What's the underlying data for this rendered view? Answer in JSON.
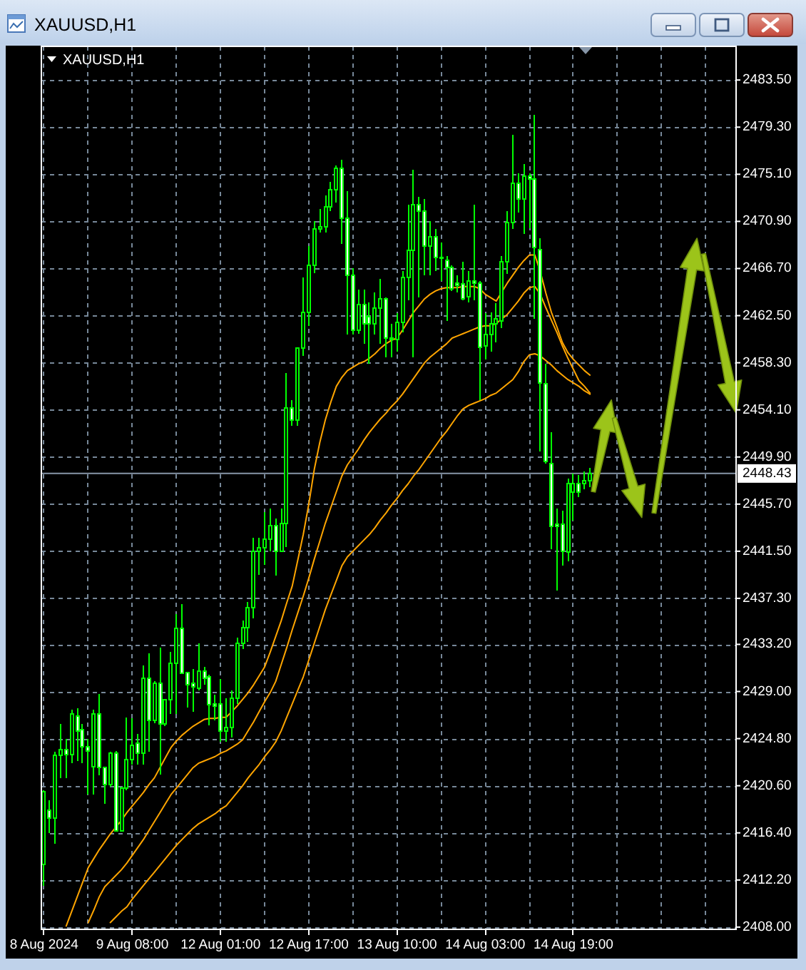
{
  "chart_data": {
    "type": "candlestick",
    "title": "XAUUSD,H1",
    "categories": [
      "8 Aug 2024",
      null,
      null,
      null,
      null,
      null,
      null,
      null,
      null,
      null,
      null,
      null,
      null,
      null,
      null,
      null,
      "9 Aug 08:00",
      null,
      null,
      null,
      null,
      null,
      null,
      null,
      null,
      null,
      null,
      null,
      null,
      null,
      null,
      null,
      "12 Aug 01:00",
      null,
      null,
      null,
      null,
      null,
      null,
      null,
      null,
      null,
      null,
      null,
      null,
      null,
      null,
      null,
      "12 Aug 17:00",
      null,
      null,
      null,
      null,
      null,
      null,
      null,
      null,
      null,
      null,
      null,
      null,
      null,
      null,
      null,
      "13 Aug 10:00",
      null,
      null,
      null,
      null,
      null,
      null,
      null,
      null,
      null,
      null,
      null,
      null,
      null,
      null,
      null,
      "14 Aug 03:00",
      null,
      null,
      null,
      null,
      null,
      null,
      null,
      null,
      null,
      null,
      null,
      null,
      null,
      null,
      null,
      "14 Aug 19:00",
      null,
      null,
      null,
      null,
      null,
      null,
      null,
      null,
      null,
      null,
      null,
      null,
      null,
      null,
      null,
      null,
      null,
      null,
      null,
      null,
      null,
      null,
      null,
      null,
      null,
      null,
      null,
      null,
      null
    ],
    "ohlc": [
      [
        2413.6,
        2420.2,
        2411.7,
        2420.1
      ],
      [
        2418.4,
        2419.3,
        2416.4,
        2417.7
      ],
      [
        2417.7,
        2423.6,
        2415.4,
        2423.3
      ],
      [
        2423.3,
        2426.1,
        2421.3,
        2423.8
      ],
      [
        2423.8,
        2424.8,
        2421.3,
        2423.4
      ],
      [
        2423.4,
        2427.4,
        2422.6,
        2427.0
      ],
      [
        2426.8,
        2427.5,
        2422.8,
        2425.5
      ],
      [
        2425.6,
        2426.1,
        2422.6,
        2424.1
      ],
      [
        2424.1,
        2424.8,
        2419.8,
        2423.7
      ],
      [
        2422.3,
        2427.4,
        2419.8,
        2427.0
      ],
      [
        2427.0,
        2428.8,
        2421.5,
        2422.2
      ],
      [
        2422.2,
        2422.3,
        2419.0,
        2420.7
      ],
      [
        2420.7,
        2423.6,
        2420.5,
        2423.5
      ],
      [
        2423.5,
        2423.7,
        2416.5,
        2416.6
      ],
      [
        2416.6,
        2420.5,
        2416.5,
        2420.4
      ],
      [
        2420.4,
        2426.7,
        2420.2,
        2422.9
      ],
      [
        2422.9,
        2426.6,
        2422.5,
        2424.2
      ],
      [
        2424.4,
        2425.2,
        2422.5,
        2423.5
      ],
      [
        2423.5,
        2431.3,
        2422.5,
        2430.2
      ],
      [
        2430.2,
        2432.4,
        2423.6,
        2426.4
      ],
      [
        2426.4,
        2429.9,
        2426.2,
        2429.7
      ],
      [
        2429.7,
        2432.9,
        2421.6,
        2426.1
      ],
      [
        2426.1,
        2428.3,
        2425.9,
        2428.3
      ],
      [
        2428.3,
        2432.5,
        2427.0,
        2431.5
      ],
      [
        2431.5,
        2435.9,
        2427.0,
        2434.6
      ],
      [
        2434.6,
        2436.8,
        2430.6,
        2430.6
      ],
      [
        2430.7,
        2430.7,
        2427.6,
        2429.6
      ],
      [
        2429.7,
        2431.0,
        2427.2,
        2429.4
      ],
      [
        2429.3,
        2433.3,
        2429.1,
        2430.8
      ],
      [
        2430.8,
        2431.2,
        2429.6,
        2430.2
      ],
      [
        2430.3,
        2430.5,
        2426.0,
        2427.8
      ],
      [
        2427.9,
        2428.7,
        2426.4,
        2427.7
      ],
      [
        2427.9,
        2430.1,
        2424.5,
        2425.5
      ],
      [
        2425.5,
        2428.4,
        2424.5,
        2425.8
      ],
      [
        2425.8,
        2429.1,
        2424.9,
        2428.4
      ],
      [
        2428.4,
        2433.8,
        2427.9,
        2433.3
      ],
      [
        2433.3,
        2435.3,
        2432.8,
        2434.7
      ],
      [
        2434.7,
        2437.0,
        2433.4,
        2436.5
      ],
      [
        2436.5,
        2442.7,
        2435.5,
        2441.5
      ],
      [
        2441.5,
        2442.7,
        2439.4,
        2441.8
      ],
      [
        2441.8,
        2445.0,
        2440.3,
        2442.6
      ],
      [
        2442.6,
        2445.3,
        2441.5,
        2443.8
      ],
      [
        2443.8,
        2444.4,
        2439.3,
        2441.5
      ],
      [
        2441.5,
        2445.3,
        2441.4,
        2444.0
      ],
      [
        2444.0,
        2457.4,
        2441.9,
        2454.3
      ],
      [
        2454.3,
        2455.0,
        2452.7,
        2453.2
      ],
      [
        2453.2,
        2459.7,
        2452.7,
        2459.6
      ],
      [
        2459.6,
        2465.9,
        2458.9,
        2462.8
      ],
      [
        2462.8,
        2468.7,
        2461.6,
        2467.0
      ],
      [
        2467.0,
        2470.9,
        2466.3,
        2470.2
      ],
      [
        2470.2,
        2472.0,
        2469.9,
        2470.4
      ],
      [
        2470.4,
        2473.2,
        2469.9,
        2472.2
      ],
      [
        2472.2,
        2474.4,
        2471.8,
        2473.7
      ],
      [
        2473.7,
        2475.9,
        2472.6,
        2475.6
      ],
      [
        2475.6,
        2476.4,
        2468.9,
        2471.2
      ],
      [
        2471.2,
        2473.6,
        2460.8,
        2466.1
      ],
      [
        2466.1,
        2466.7,
        2460.8,
        2461.2
      ],
      [
        2461.2,
        2464.8,
        2460.9,
        2463.5
      ],
      [
        2463.5,
        2464.8,
        2460.0,
        2461.8
      ],
      [
        2462.4,
        2463.7,
        2458.2,
        2461.8
      ],
      [
        2461.8,
        2464.6,
        2460.8,
        2463.2
      ],
      [
        2463.2,
        2465.8,
        2460.0,
        2464.0
      ],
      [
        2464.0,
        2464.1,
        2458.8,
        2460.5
      ],
      [
        2460.5,
        2461.8,
        2458.8,
        2460.4
      ],
      [
        2460.4,
        2462.7,
        2459.3,
        2461.9
      ],
      [
        2461.9,
        2466.5,
        2461.0,
        2465.9
      ],
      [
        2465.9,
        2472.4,
        2463.9,
        2468.3
      ],
      [
        2468.3,
        2475.5,
        2458.8,
        2472.4
      ],
      [
        2472.4,
        2473.1,
        2464.1,
        2471.8
      ],
      [
        2471.8,
        2472.9,
        2466.1,
        2468.7
      ],
      [
        2468.7,
        2470.9,
        2466.1,
        2469.5
      ],
      [
        2469.5,
        2470.2,
        2466.5,
        2467.7
      ],
      [
        2467.7,
        2469.0,
        2465.6,
        2467.6
      ],
      [
        2467.4,
        2467.8,
        2462.0,
        2466.8
      ],
      [
        2466.8,
        2467.0,
        2464.7,
        2464.9
      ],
      [
        2465.4,
        2466.1,
        2464.6,
        2465.2
      ],
      [
        2465.3,
        2467.3,
        2463.9,
        2464.0
      ],
      [
        2464.2,
        2466.5,
        2463.7,
        2465.6
      ],
      [
        2465.6,
        2472.4,
        2463.9,
        2465.4
      ],
      [
        2465.4,
        2465.6,
        2455.0,
        2459.7
      ],
      [
        2459.8,
        2462.7,
        2458.6,
        2460.8
      ],
      [
        2460.8,
        2462.8,
        2459.3,
        2461.8
      ],
      [
        2461.8,
        2463.6,
        2460.1,
        2462.2
      ],
      [
        2462.0,
        2467.8,
        2461.4,
        2467.3
      ],
      [
        2467.3,
        2471.8,
        2466.2,
        2470.8
      ],
      [
        2470.8,
        2478.6,
        2470.2,
        2474.3
      ],
      [
        2474.3,
        2475.2,
        2471.7,
        2472.9
      ],
      [
        2472.9,
        2476.0,
        2469.8,
        2474.9
      ],
      [
        2474.9,
        2475.2,
        2470.3,
        2474.7
      ],
      [
        2474.7,
        2480.4,
        2462.2,
        2468.6
      ],
      [
        2468.4,
        2469.4,
        2450.4,
        2456.5
      ],
      [
        2456.4,
        2458.2,
        2449.3,
        2449.5
      ],
      [
        2449.3,
        2452.1,
        2441.7,
        2443.7
      ],
      [
        2443.9,
        2445.3,
        2438.0,
        2443.7
      ],
      [
        2443.9,
        2445.1,
        2440.2,
        2441.5
      ],
      [
        2441.4,
        2448.0,
        2440.6,
        2447.5
      ],
      [
        2446.8,
        2448.4,
        2444.2,
        2447.5
      ],
      [
        2447.5,
        2448.3,
        2446.3,
        2446.8
      ],
      [
        2447.5,
        2448.6,
        2447.0,
        2447.8
      ],
      [
        2447.8,
        2448.9,
        2447.2,
        2448.43
      ],
      null,
      null,
      null,
      null,
      null,
      null,
      null,
      null,
      null,
      null,
      null,
      null,
      null,
      null,
      null,
      null,
      null,
      null,
      null,
      null,
      null,
      null,
      null,
      null,
      null,
      null
    ],
    "color": "#00ff00",
    "colors": [
      "#000000",
      "#ffffff",
      "#000000",
      "#000000",
      "#ffffff",
      "#000000",
      "#ffffff",
      "#ffffff",
      "#ffffff",
      "#000000",
      "#ffffff",
      "#ffffff",
      "#000000",
      "#ffffff",
      "#000000",
      "#000000",
      "#000000",
      "#ffffff",
      "#000000",
      "#ffffff",
      "#000000",
      "#ffffff",
      "#000000",
      "#000000",
      "#000000",
      "#ffffff",
      "#ffffff",
      "#ffffff",
      "#000000",
      "#ffffff",
      "#ffffff",
      "#ffffff",
      "#ffffff",
      "#000000",
      "#000000",
      "#000000",
      "#000000",
      "#000000",
      "#000000",
      "#000000",
      "#000000",
      "#000000",
      "#ffffff",
      "#000000",
      "#000000",
      "#ffffff",
      "#000000",
      "#000000",
      "#000000",
      "#000000",
      "#000000",
      "#000000",
      "#000000",
      "#000000",
      "#ffffff",
      "#ffffff",
      "#ffffff",
      "#000000",
      "#ffffff",
      "#ffffff",
      "#000000",
      "#000000",
      "#ffffff",
      "#ffffff",
      "#000000",
      "#000000",
      "#000000",
      "#000000",
      "#ffffff",
      "#ffffff",
      "#000000",
      "#ffffff",
      "#ffffff",
      "#ffffff",
      "#ffffff",
      "#ffffff",
      "#ffffff",
      "#000000",
      "#ffffff",
      "#ffffff",
      "#000000",
      "#000000",
      "#000000",
      "#000000",
      "#000000",
      "#000000",
      "#ffffff",
      "#000000",
      "#ffffff",
      "#ffffff",
      "#ffffff",
      "#ffffff",
      "#ffffff",
      "#ffffff",
      "#ffffff",
      "#000000",
      "#000000",
      "#ffffff",
      "#000000",
      "#000000",
      null,
      null,
      null,
      null,
      null,
      null,
      null,
      null,
      null,
      null,
      null,
      null,
      null,
      null,
      null,
      null,
      null,
      null,
      null,
      null,
      null,
      null,
      null,
      null,
      null,
      null
    ],
    "series": [
      {
        "type": "line",
        "color": "#ffa500",
        "values": [
          null,
          null,
          null,
          null,
          2408.1,
          2409.4,
          2410.7,
          2412.0,
          2413.3,
          2414.1,
          2414.9,
          2415.6,
          2416.3,
          2416.9,
          2417.5,
          2418.2,
          2418.8,
          2419.4,
          2420.0,
          2420.7,
          2421.3,
          2422.2,
          2423.1,
          2424.0,
          2424.6,
          2425.1,
          2425.5,
          2425.9,
          2426.2,
          2426.5,
          2426.6,
          2426.6,
          2426.7,
          2426.7,
          2427.2,
          2427.7,
          2428.3,
          2428.9,
          2429.6,
          2430.4,
          2431.2,
          2432.5,
          2433.9,
          2435.3,
          2436.9,
          2438.4,
          2440.7,
          2443.0,
          2445.7,
          2448.8,
          2451.2,
          2453.2,
          2454.8,
          2456.2,
          2457.0,
          2457.6,
          2457.9,
          2458.2,
          2458.4,
          2458.7,
          2459.1,
          2459.6,
          2460.0,
          2460.3,
          2460.5,
          2461.2,
          2462.0,
          2462.8,
          2463.4,
          2464.0,
          2464.4,
          2464.7,
          2464.9,
          2465.0,
          2465.0,
          2465.0,
          2465.1,
          2465.1,
          2465.1,
          2464.9,
          2464.4,
          2464.1,
          2463.8,
          2464.6,
          2465.4,
          2466.1,
          2466.8,
          2467.4,
          2467.9,
          2467.9,
          2466.4,
          2464.5,
          2462.8,
          2461.5,
          2460.1,
          2459.2,
          2458.6,
          2458.1,
          2457.6,
          2457.2,
          null,
          null,
          null,
          null,
          null,
          null,
          null,
          null,
          null,
          null,
          null,
          null,
          null,
          null,
          null,
          null,
          null,
          null,
          null,
          null,
          null,
          null,
          null,
          null,
          null,
          null
        ]
      },
      {
        "type": "line",
        "color": "#ffa500",
        "values": [
          null,
          null,
          null,
          null,
          null,
          null,
          null,
          null,
          2408.4,
          2409.5,
          2410.7,
          2411.6,
          2412.1,
          2412.6,
          2413.1,
          2413.7,
          2414.4,
          2415.1,
          2415.8,
          2416.6,
          2417.4,
          2418.2,
          2419.0,
          2419.8,
          2420.4,
          2421.0,
          2421.6,
          2422.2,
          2422.6,
          2422.8,
          2423.0,
          2423.2,
          2423.5,
          2423.7,
          2424.0,
          2424.3,
          2424.7,
          2425.5,
          2426.3,
          2427.2,
          2428.1,
          2428.9,
          2429.9,
          2431.4,
          2432.9,
          2434.5,
          2436.0,
          2437.5,
          2439.1,
          2440.8,
          2442.4,
          2444.0,
          2445.4,
          2446.8,
          2448.2,
          2449.2,
          2449.9,
          2450.6,
          2451.4,
          2452.1,
          2452.7,
          2453.3,
          2453.8,
          2454.4,
          2454.9,
          2455.5,
          2456.2,
          2456.9,
          2457.6,
          2458.3,
          2458.8,
          2459.2,
          2459.6,
          2460.0,
          2460.5,
          2460.7,
          2460.9,
          2461.1,
          2461.3,
          2461.5,
          2461.6,
          2461.6,
          2461.8,
          2462.2,
          2462.6,
          2463.2,
          2463.8,
          2464.5,
          2465.0,
          2465.1,
          2464.4,
          2463.2,
          2462.1,
          2461.0,
          2459.8,
          2458.7,
          2457.7,
          2456.7,
          2456.2,
          2455.6,
          null,
          null,
          null,
          null,
          null,
          null,
          null,
          null,
          null,
          null,
          null,
          null,
          null,
          null,
          null,
          null,
          null,
          null,
          null,
          null,
          null,
          null,
          null,
          null,
          null,
          null
        ]
      },
      {
        "type": "line",
        "color": "#ffa500",
        "values": [
          null,
          null,
          null,
          null,
          null,
          null,
          null,
          null,
          null,
          null,
          null,
          null,
          2408.4,
          2408.9,
          2409.4,
          2409.8,
          2410.5,
          2411.1,
          2411.7,
          2412.3,
          2412.9,
          2413.5,
          2414.1,
          2414.7,
          2415.3,
          2415.8,
          2416.3,
          2416.8,
          2417.2,
          2417.5,
          2417.8,
          2418.1,
          2418.5,
          2418.8,
          2419.4,
          2420.0,
          2420.6,
          2421.3,
          2421.9,
          2422.5,
          2423.2,
          2423.8,
          2424.5,
          2425.5,
          2426.7,
          2427.9,
          2429.1,
          2430.3,
          2431.8,
          2433.3,
          2434.8,
          2436.3,
          2437.6,
          2438.9,
          2440.2,
          2441.0,
          2441.5,
          2442.0,
          2442.5,
          2443.0,
          2443.6,
          2444.3,
          2444.9,
          2445.6,
          2446.2,
          2446.9,
          2447.5,
          2448.2,
          2448.8,
          2449.5,
          2450.2,
          2450.9,
          2451.6,
          2452.2,
          2452.9,
          2453.6,
          2454.2,
          2454.5,
          2454.7,
          2454.9,
          2455.1,
          2455.4,
          2455.6,
          2456.0,
          2456.4,
          2456.8,
          2457.5,
          2458.4,
          2459.0,
          2459.1,
          2458.9,
          2458.5,
          2458.1,
          2457.6,
          2457.2,
          2456.8,
          2456.5,
          2456.2,
          2455.8,
          2455.5,
          null,
          null,
          null,
          null,
          null,
          null,
          null,
          null,
          null,
          null,
          null,
          null,
          null,
          null,
          null,
          null,
          null,
          null,
          null,
          null,
          null,
          null,
          null,
          null,
          null,
          null
        ]
      }
    ],
    "ylim": [
      2407.8,
      2486.5
    ],
    "yticks": [
      {
        "value": 2408,
        "label": "2408.00"
      },
      {
        "value": 2412.2,
        "label": "2412.20"
      },
      {
        "value": 2416.4,
        "label": "2416.40"
      },
      {
        "value": 2420.6,
        "label": "2420.60"
      },
      {
        "value": 2424.8,
        "label": "2424.80"
      },
      {
        "value": 2429,
        "label": "2429.00"
      },
      {
        "value": 2433.2,
        "label": "2433.20"
      },
      {
        "value": 2437.3,
        "label": "2437.30"
      },
      {
        "value": 2441.5,
        "label": "2441.50"
      },
      {
        "value": 2445.7,
        "label": "2445.70"
      },
      {
        "value": 2449.9,
        "label": "2449.90"
      },
      {
        "value": 2454.1,
        "label": "2454.10"
      },
      {
        "value": 2458.3,
        "label": "2458.30"
      },
      {
        "value": 2462.5,
        "label": "2462.50"
      },
      {
        "value": 2466.7,
        "label": "2466.70"
      },
      {
        "value": 2470.9,
        "label": "2470.90"
      },
      {
        "value": 2475.1,
        "label": "2475.10"
      },
      {
        "value": 2479.3,
        "label": "2479.30"
      },
      {
        "value": 2483.5,
        "label": "2483.50"
      }
    ],
    "grid": true,
    "ref_lines": [
      {
        "axis": "y",
        "value": 2448.43,
        "label": "2448.43",
        "color": "#8796a8"
      }
    ]
  }
}
